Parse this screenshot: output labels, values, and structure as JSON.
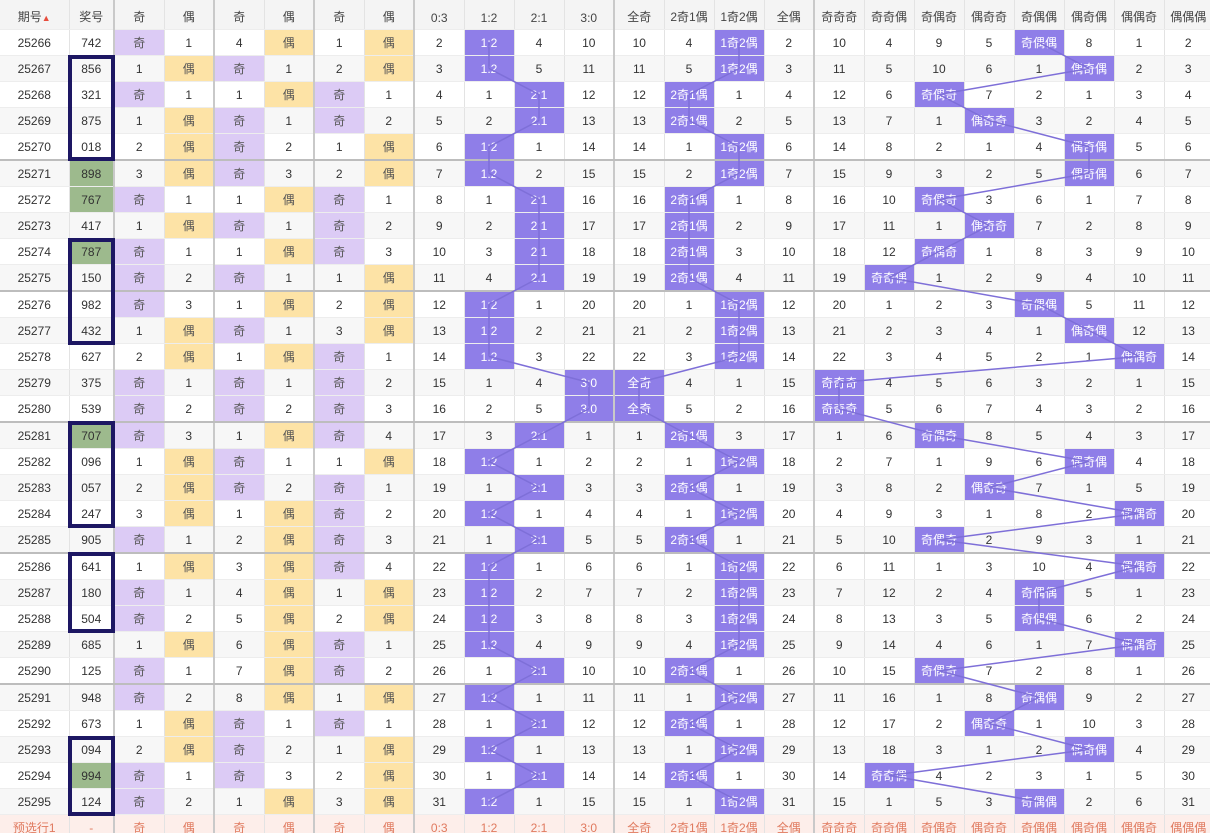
{
  "header": {
    "issue_label": "期号",
    "sort_icon": "sort-arrows-icon",
    "prize_label": "奖号",
    "cols": [
      "奇",
      "偶",
      "奇",
      "偶",
      "奇",
      "偶",
      "0:3",
      "1:2",
      "2:1",
      "3:0",
      "全奇",
      "2奇1偶",
      "1奇2偶",
      "全偶",
      "奇奇奇",
      "奇奇偶",
      "奇偶奇",
      "偶奇奇",
      "奇偶偶",
      "偶奇偶",
      "偶偶奇",
      "偶偶偶"
    ]
  },
  "rows": [
    {
      "issue": "25266",
      "num": "742",
      "c": [
        "奇",
        "1",
        "4",
        "偶",
        "1",
        "偶",
        "2",
        "1:2",
        "4",
        "10",
        "10",
        "4",
        "1奇2偶",
        "2",
        "10",
        "4",
        "9",
        "5",
        "奇偶偶",
        "8",
        "1",
        "2"
      ]
    },
    {
      "issue": "25267",
      "num": "856",
      "c": [
        "1",
        "偶",
        "奇",
        "1",
        "2",
        "偶",
        "3",
        "1:2",
        "5",
        "11",
        "11",
        "5",
        "1奇2偶",
        "3",
        "11",
        "5",
        "10",
        "6",
        "1",
        "偶奇偶",
        "2",
        "3"
      ]
    },
    {
      "issue": "25268",
      "num": "321",
      "c": [
        "奇",
        "1",
        "1",
        "偶",
        "奇",
        "1",
        "4",
        "1",
        "2:1",
        "12",
        "12",
        "2奇1偶",
        "1",
        "4",
        "12",
        "6",
        "奇偶奇",
        "7",
        "2",
        "1",
        "3",
        "4"
      ]
    },
    {
      "issue": "25269",
      "num": "875",
      "c": [
        "1",
        "偶",
        "奇",
        "1",
        "奇",
        "2",
        "5",
        "2",
        "2:1",
        "13",
        "13",
        "2奇1偶",
        "2",
        "5",
        "13",
        "7",
        "1",
        "偶奇奇",
        "3",
        "2",
        "4",
        "5"
      ]
    },
    {
      "issue": "25270",
      "num": "018",
      "c": [
        "2",
        "偶",
        "奇",
        "2",
        "1",
        "偶",
        "6",
        "1:2",
        "1",
        "14",
        "14",
        "1",
        "1奇2偶",
        "6",
        "14",
        "8",
        "2",
        "1",
        "4",
        "偶奇偶",
        "5",
        "6"
      ]
    },
    {
      "issue": "25271",
      "num": "898",
      "c": [
        "3",
        "偶",
        "奇",
        "3",
        "2",
        "偶",
        "7",
        "1:2",
        "2",
        "15",
        "15",
        "2",
        "1奇2偶",
        "7",
        "15",
        "9",
        "3",
        "2",
        "5",
        "偶奇偶",
        "6",
        "7"
      ]
    },
    {
      "issue": "25272",
      "num": "767",
      "c": [
        "奇",
        "1",
        "1",
        "偶",
        "奇",
        "1",
        "8",
        "1",
        "2:1",
        "16",
        "16",
        "2奇1偶",
        "1",
        "8",
        "16",
        "10",
        "奇偶奇",
        "3",
        "6",
        "1",
        "7",
        "8"
      ]
    },
    {
      "issue": "25273",
      "num": "417",
      "c": [
        "1",
        "偶",
        "奇",
        "1",
        "奇",
        "2",
        "9",
        "2",
        "2:1",
        "17",
        "17",
        "2奇1偶",
        "2",
        "9",
        "17",
        "11",
        "1",
        "偶奇奇",
        "7",
        "2",
        "8",
        "9"
      ]
    },
    {
      "issue": "25274",
      "num": "787",
      "c": [
        "奇",
        "1",
        "1",
        "偶",
        "奇",
        "3",
        "10",
        "3",
        "2:1",
        "18",
        "18",
        "2奇1偶",
        "3",
        "10",
        "18",
        "12",
        "奇偶奇",
        "1",
        "8",
        "3",
        "9",
        "10"
      ]
    },
    {
      "issue": "25275",
      "num": "150",
      "c": [
        "奇",
        "2",
        "奇",
        "1",
        "1",
        "偶",
        "11",
        "4",
        "2:1",
        "19",
        "19",
        "2奇1偶",
        "4",
        "11",
        "19",
        "奇奇偶",
        "1",
        "2",
        "9",
        "4",
        "10",
        "11"
      ]
    },
    {
      "issue": "25276",
      "num": "982",
      "c": [
        "奇",
        "3",
        "1",
        "偶",
        "2",
        "偶",
        "12",
        "1:2",
        "1",
        "20",
        "20",
        "1",
        "1奇2偶",
        "12",
        "20",
        "1",
        "2",
        "3",
        "奇偶偶",
        "5",
        "11",
        "12"
      ]
    },
    {
      "issue": "25277",
      "num": "432",
      "c": [
        "1",
        "偶",
        "奇",
        "1",
        "3",
        "偶",
        "13",
        "1:2",
        "2",
        "21",
        "21",
        "2",
        "1奇2偶",
        "13",
        "21",
        "2",
        "3",
        "4",
        "1",
        "偶奇偶",
        "12",
        "13"
      ]
    },
    {
      "issue": "25278",
      "num": "627",
      "c": [
        "2",
        "偶",
        "1",
        "偶",
        "奇",
        "1",
        "14",
        "1:2",
        "3",
        "22",
        "22",
        "3",
        "1奇2偶",
        "14",
        "22",
        "3",
        "4",
        "5",
        "2",
        "1",
        "偶偶奇",
        "14"
      ]
    },
    {
      "issue": "25279",
      "num": "375",
      "c": [
        "奇",
        "1",
        "奇",
        "1",
        "奇",
        "2",
        "15",
        "1",
        "4",
        "3:0",
        "全奇",
        "4",
        "1",
        "15",
        "奇奇奇",
        "4",
        "5",
        "6",
        "3",
        "2",
        "1",
        "15"
      ]
    },
    {
      "issue": "25280",
      "num": "539",
      "c": [
        "奇",
        "2",
        "奇",
        "2",
        "奇",
        "3",
        "16",
        "2",
        "5",
        "3:0",
        "全奇",
        "5",
        "2",
        "16",
        "奇奇奇",
        "5",
        "6",
        "7",
        "4",
        "3",
        "2",
        "16"
      ]
    },
    {
      "issue": "25281",
      "num": "707",
      "c": [
        "奇",
        "3",
        "1",
        "偶",
        "奇",
        "4",
        "17",
        "3",
        "2:1",
        "1",
        "1",
        "2奇1偶",
        "3",
        "17",
        "1",
        "6",
        "奇偶奇",
        "8",
        "5",
        "4",
        "3",
        "17"
      ]
    },
    {
      "issue": "25282",
      "num": "096",
      "c": [
        "1",
        "偶",
        "奇",
        "1",
        "1",
        "偶",
        "18",
        "1:2",
        "1",
        "2",
        "2",
        "1",
        "1奇2偶",
        "18",
        "2",
        "7",
        "1",
        "9",
        "6",
        "偶奇偶",
        "4",
        "18"
      ]
    },
    {
      "issue": "25283",
      "num": "057",
      "c": [
        "2",
        "偶",
        "奇",
        "2",
        "奇",
        "1",
        "19",
        "1",
        "2:1",
        "3",
        "3",
        "2奇1偶",
        "1",
        "19",
        "3",
        "8",
        "2",
        "偶奇奇",
        "7",
        "1",
        "5",
        "19"
      ]
    },
    {
      "issue": "25284",
      "num": "247",
      "c": [
        "3",
        "偶",
        "1",
        "偶",
        "奇",
        "2",
        "20",
        "1:2",
        "1",
        "4",
        "4",
        "1",
        "1奇2偶",
        "20",
        "4",
        "9",
        "3",
        "1",
        "8",
        "2",
        "偶偶奇",
        "20"
      ]
    },
    {
      "issue": "25285",
      "num": "905",
      "c": [
        "奇",
        "1",
        "2",
        "偶",
        "奇",
        "3",
        "21",
        "1",
        "2:1",
        "5",
        "5",
        "2奇1偶",
        "1",
        "21",
        "5",
        "10",
        "奇偶奇",
        "2",
        "9",
        "3",
        "1",
        "21"
      ]
    },
    {
      "issue": "25286",
      "num": "641",
      "c": [
        "1",
        "偶",
        "3",
        "偶",
        "奇",
        "4",
        "22",
        "1:2",
        "1",
        "6",
        "6",
        "1",
        "1奇2偶",
        "22",
        "6",
        "11",
        "1",
        "3",
        "10",
        "4",
        "偶偶奇",
        "22"
      ]
    },
    {
      "issue": "25287",
      "num": "180",
      "c": [
        "奇",
        "1",
        "4",
        "偶",
        "1",
        "偶",
        "23",
        "1:2",
        "2",
        "7",
        "7",
        "2",
        "1奇2偶",
        "23",
        "7",
        "12",
        "2",
        "4",
        "奇偶偶",
        "5",
        "1",
        "23"
      ]
    },
    {
      "issue": "25288",
      "num": "504",
      "c": [
        "奇",
        "2",
        "5",
        "偶",
        "2",
        "偶",
        "24",
        "1:2",
        "3",
        "8",
        "8",
        "3",
        "1奇2偶",
        "24",
        "8",
        "13",
        "3",
        "5",
        "奇偶偶",
        "6",
        "2",
        "24"
      ]
    },
    {
      "issue": "25289",
      "num": "685",
      "c": [
        "1",
        "偶",
        "6",
        "偶",
        "奇",
        "1",
        "25",
        "1:2",
        "4",
        "9",
        "9",
        "4",
        "1奇2偶",
        "25",
        "9",
        "14",
        "4",
        "6",
        "1",
        "7",
        "偶偶奇",
        "25"
      ]
    },
    {
      "issue": "25290",
      "num": "125",
      "c": [
        "奇",
        "1",
        "7",
        "偶",
        "奇",
        "2",
        "26",
        "1",
        "2:1",
        "10",
        "10",
        "2奇1偶",
        "1",
        "26",
        "10",
        "15",
        "奇偶奇",
        "7",
        "2",
        "8",
        "1",
        "26"
      ]
    },
    {
      "issue": "25291",
      "num": "948",
      "c": [
        "奇",
        "2",
        "8",
        "偶",
        "1",
        "偶",
        "27",
        "1:2",
        "1",
        "11",
        "11",
        "1",
        "1奇2偶",
        "27",
        "11",
        "16",
        "1",
        "8",
        "奇偶偶",
        "9",
        "2",
        "27"
      ]
    },
    {
      "issue": "25292",
      "num": "673",
      "c": [
        "1",
        "偶",
        "奇",
        "1",
        "奇",
        "1",
        "28",
        "1",
        "2:1",
        "12",
        "12",
        "2奇1偶",
        "1",
        "28",
        "12",
        "17",
        "2",
        "偶奇奇",
        "1",
        "10",
        "3",
        "28"
      ]
    },
    {
      "issue": "25293",
      "num": "094",
      "c": [
        "2",
        "偶",
        "奇",
        "2",
        "1",
        "偶",
        "29",
        "1:2",
        "1",
        "13",
        "13",
        "1",
        "1奇2偶",
        "29",
        "13",
        "18",
        "3",
        "1",
        "2",
        "偶奇偶",
        "4",
        "29"
      ]
    },
    {
      "issue": "25294",
      "num": "994",
      "c": [
        "奇",
        "1",
        "奇",
        "3",
        "2",
        "偶",
        "30",
        "1",
        "2:1",
        "14",
        "14",
        "2奇1偶",
        "1",
        "30",
        "14",
        "奇奇偶",
        "4",
        "2",
        "3",
        "1",
        "5",
        "30"
      ]
    },
    {
      "issue": "25295",
      "num": "124",
      "c": [
        "奇",
        "2",
        "1",
        "偶",
        "3",
        "偶",
        "31",
        "1:2",
        "1",
        "15",
        "15",
        "1",
        "1奇2偶",
        "31",
        "15",
        "1",
        "5",
        "3",
        "奇偶偶",
        "2",
        "6",
        "31"
      ]
    }
  ],
  "preselect": {
    "label": "预选行1",
    "num": "-",
    "c": [
      "奇",
      "偶",
      "奇",
      "偶",
      "奇",
      "偶",
      "0:3",
      "1:2",
      "2:1",
      "3:0",
      "全奇",
      "2奇1偶",
      "1奇2偶",
      "全偶",
      "奇奇奇",
      "奇奇偶",
      "奇偶奇",
      "偶奇奇",
      "奇偶偶",
      "偶奇偶",
      "偶偶奇",
      "偶偶偶"
    ]
  },
  "green_numbers": [
    "25271",
    "25272",
    "25274",
    "25281",
    "25294"
  ],
  "boxed_groups": [
    [
      "25267",
      "25270"
    ],
    [
      "25274",
      "25277"
    ],
    [
      "25281",
      "25284"
    ],
    [
      "25286",
      "25288"
    ],
    [
      "25293",
      "25295"
    ]
  ],
  "colors": {
    "odd": "#dccbf5",
    "even": "#fde3a6",
    "highlight": "#8f7ee8",
    "green": "#9dba8d",
    "box": "#1d1763",
    "preselect_text": "#e07a5f"
  }
}
